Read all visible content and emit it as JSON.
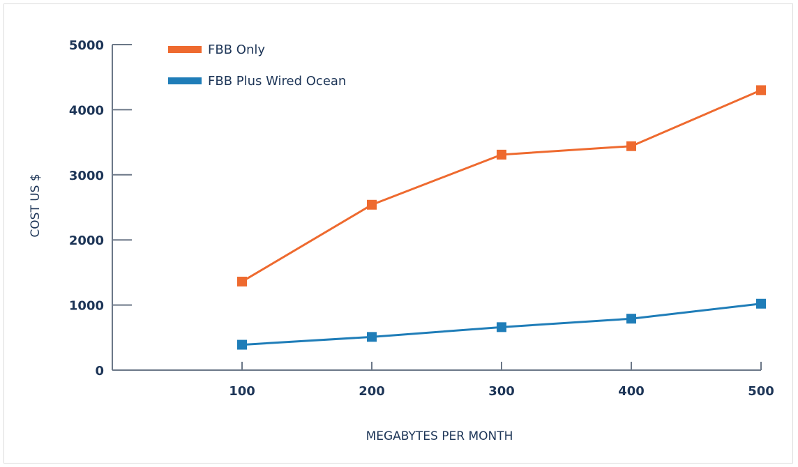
{
  "chart_data": {
    "type": "line",
    "title": "",
    "xlabel": "MEGABYTES PER MONTH",
    "ylabel": "COST   US $",
    "x": [
      100,
      200,
      300,
      400,
      500
    ],
    "xlim": [
      0,
      500
    ],
    "ylim": [
      0,
      5000
    ],
    "yticks": [
      0,
      1000,
      2000,
      3000,
      4000,
      5000
    ],
    "xticks": [
      100,
      200,
      300,
      400,
      500
    ],
    "grid": false,
    "legend_position": "top-left",
    "series": [
      {
        "name": "FBB Only",
        "color": "#ee6a2f",
        "values": [
          1360,
          2540,
          3310,
          3440,
          4300
        ]
      },
      {
        "name": "FBB Plus Wired Ocean",
        "color": "#1f7db8",
        "values": [
          390,
          510,
          660,
          790,
          1020
        ]
      }
    ],
    "colors": {
      "axis": "#6b7787",
      "text": "#1d3557"
    }
  }
}
